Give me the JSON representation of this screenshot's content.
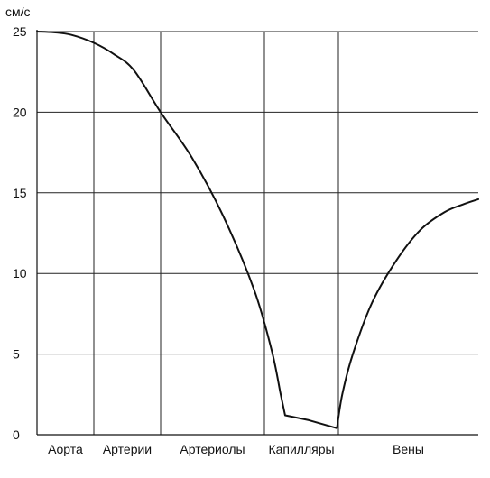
{
  "chart_data": {
    "type": "line",
    "title": "",
    "ylabel": "см/с",
    "xlabel": "",
    "ylim": [
      0,
      25
    ],
    "yticks": [
      0,
      5,
      10,
      15,
      20,
      25
    ],
    "grid": true,
    "categories": [
      "Аорта",
      "Артерии",
      "Артериолы",
      "Капилляры",
      "Вены"
    ],
    "category_bounds": [
      0,
      1,
      2,
      3,
      4,
      5.45
    ],
    "series": [
      {
        "values": [
          [
            0.0,
            25.0
          ],
          [
            0.3,
            24.95
          ],
          [
            0.6,
            24.8
          ],
          [
            1.0,
            24.3
          ],
          [
            1.3,
            23.6
          ],
          [
            1.6,
            22.6
          ],
          [
            2.0,
            20.0
          ],
          [
            2.3,
            17.2
          ],
          [
            2.6,
            13.6
          ],
          [
            2.9,
            9.0
          ],
          [
            3.1,
            5.2
          ],
          [
            3.22,
            2.5
          ],
          [
            3.28,
            1.2
          ],
          [
            3.6,
            0.9
          ],
          [
            3.98,
            0.4
          ],
          [
            4.04,
            2.5
          ],
          [
            4.15,
            5.0
          ],
          [
            4.35,
            8.2
          ],
          [
            4.6,
            10.8
          ],
          [
            4.85,
            12.7
          ],
          [
            5.1,
            13.8
          ],
          [
            5.3,
            14.3
          ],
          [
            5.45,
            14.6
          ]
        ]
      }
    ]
  }
}
